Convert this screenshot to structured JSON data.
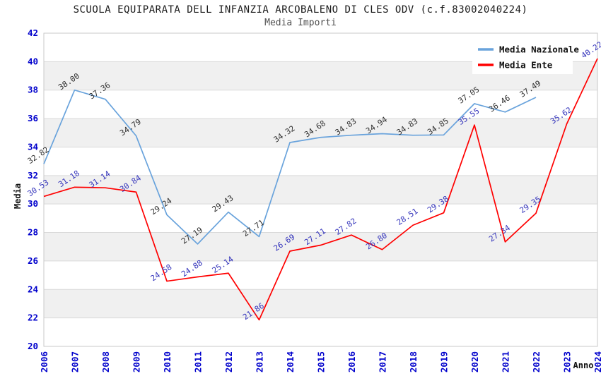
{
  "title": "SCUOLA EQUIPARATA DELL INFANZIA ARCOBALENO DI CLES ODV (c.f.83002040224)",
  "subtitle": "Media Importi",
  "colors": {
    "tick_label": "#0000cc",
    "grid_line": "#d9d9d9",
    "band_fill": "#f0f0f0",
    "plot_border": "#c9c9c9",
    "axis_title": "#111111",
    "legend_text": "#111111",
    "legend_bg": "#ffffff",
    "title_text": "#1a1a1a",
    "subtitle_text": "#4f4f4f"
  },
  "chart_data": {
    "type": "line",
    "x": [
      2006,
      2007,
      2008,
      2009,
      2010,
      2011,
      2012,
      2013,
      2014,
      2015,
      2016,
      2017,
      2018,
      2019,
      2020,
      2021,
      2022,
      2023,
      2024
    ],
    "series": [
      {
        "name": "Media Nazionale",
        "color": "#69a3dc",
        "label_color": "#303030",
        "values": [
          32.82,
          38.0,
          37.36,
          34.79,
          29.24,
          27.19,
          29.43,
          27.71,
          34.32,
          34.68,
          34.83,
          34.94,
          34.83,
          34.85,
          37.05,
          36.46,
          37.49,
          null,
          null
        ]
      },
      {
        "name": "Media Ente",
        "color": "#ff0000",
        "label_color": "#3333bb",
        "values": [
          30.53,
          31.18,
          31.14,
          30.84,
          24.58,
          24.88,
          25.14,
          21.86,
          26.69,
          27.11,
          27.82,
          26.8,
          28.51,
          29.38,
          35.55,
          27.34,
          29.35,
          35.62,
          40.22
        ]
      }
    ],
    "xlabel": "Anno",
    "ylabel": "Media",
    "ylim": [
      20,
      42
    ],
    "ytick_step": 2,
    "grid": "horizontal-bands",
    "legend_position": "top-right",
    "value_labels": "2-decimals, rotated"
  }
}
